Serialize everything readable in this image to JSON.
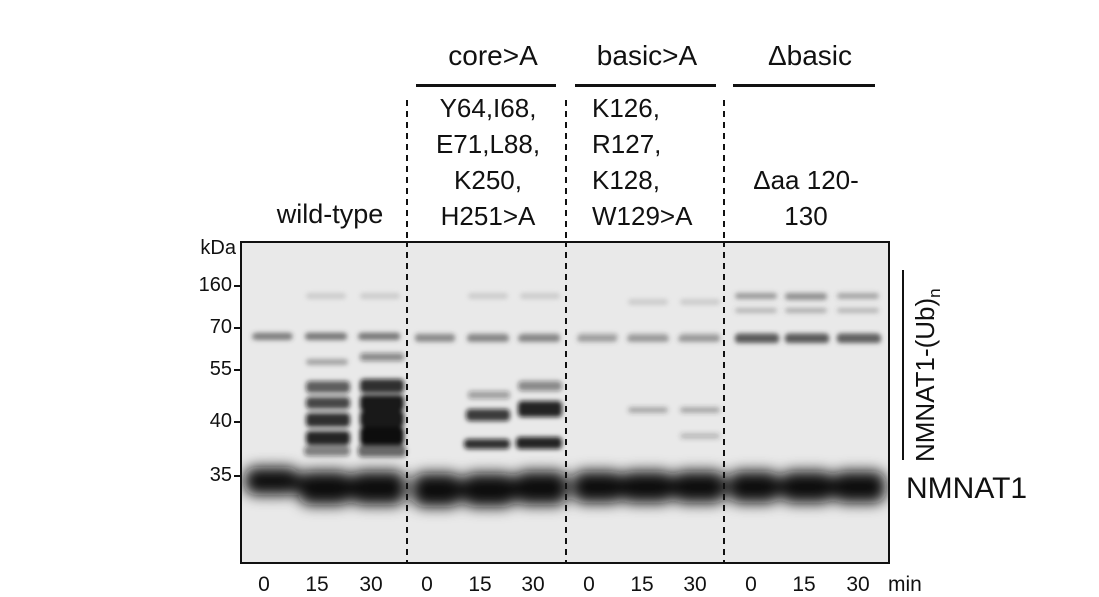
{
  "groups": [
    {
      "header": "",
      "mutation": "wild-type"
    },
    {
      "header": "core>A",
      "mutation": "Y64,I68,\nE71,L88,\nK250,\nH251>A"
    },
    {
      "header": "basic>A",
      "mutation": "K126,\nR127,\nK128,\nW129>A"
    },
    {
      "header": "Δbasic",
      "mutation": "Δaa 120-\n130"
    }
  ],
  "kda_label": "kDa",
  "markers": [
    "160",
    "70",
    "55",
    "40",
    "35"
  ],
  "lanes": [
    "0",
    "15",
    "30",
    "0",
    "15",
    "30",
    "0",
    "15",
    "30",
    "0",
    "15",
    "30"
  ],
  "time_unit": "min",
  "band_labels": {
    "ubiquitinated": "NMNAT1-(Ub)",
    "ubiquitinated_sub": "n",
    "unmodified": "NMNAT1"
  }
}
